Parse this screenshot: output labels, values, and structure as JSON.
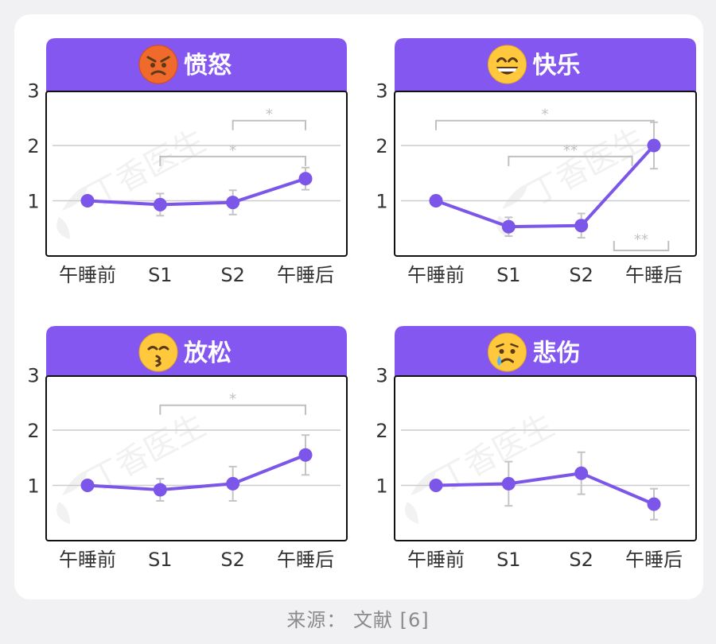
{
  "source": "来源： 文献 [6]",
  "watermark": "丁香医生",
  "colors": {
    "accent": "#7b56e8",
    "header": "#8457f1",
    "errorbar": "#c4c4c4",
    "significance": "#c0c0c0",
    "grid": "#cccccc"
  },
  "chart_data": [
    {
      "type": "line",
      "title": "愤怒",
      "icon": "angry-face-emoji",
      "categories": [
        "午睡前",
        "S1",
        "S2",
        "午睡后"
      ],
      "values": [
        1.0,
        0.93,
        0.97,
        1.4
      ],
      "errors": [
        0,
        0.2,
        0.22,
        0.2
      ],
      "ylim": [
        0,
        3
      ],
      "yticks": [
        1,
        2,
        3
      ],
      "grid": true,
      "significance": [
        {
          "from": 1,
          "to": 3,
          "label": "*",
          "level": 1.8
        },
        {
          "from": 2,
          "to": 3,
          "label": "*",
          "level": 2.45
        }
      ]
    },
    {
      "type": "line",
      "title": "快乐",
      "icon": "grinning-face-emoji",
      "categories": [
        "午睡前",
        "S1",
        "S2",
        "午睡后"
      ],
      "values": [
        1.0,
        0.53,
        0.55,
        2.0
      ],
      "errors": [
        0,
        0.17,
        0.22,
        0.42
      ],
      "ylim": [
        0,
        3
      ],
      "yticks": [
        1,
        2,
        3
      ],
      "grid": true,
      "significance": [
        {
          "from": 0,
          "to": 3,
          "label": "*",
          "level": 2.45
        },
        {
          "from": 1,
          "to": 2.7,
          "label": "**",
          "level": 1.8
        },
        {
          "from": 2.45,
          "to": 3.2,
          "label": "**",
          "level": 0.1,
          "below": true
        }
      ]
    },
    {
      "type": "line",
      "title": "放松",
      "icon": "kissing-face-emoji",
      "categories": [
        "午睡前",
        "S1",
        "S2",
        "午睡后"
      ],
      "values": [
        1.0,
        0.92,
        1.03,
        1.55
      ],
      "errors": [
        0,
        0.2,
        0.31,
        0.36
      ],
      "ylim": [
        0,
        3
      ],
      "yticks": [
        1,
        2,
        3
      ],
      "grid": true,
      "significance": [
        {
          "from": 1,
          "to": 3,
          "label": "*",
          "level": 2.45
        }
      ]
    },
    {
      "type": "line",
      "title": "悲伤",
      "icon": "crying-face-emoji",
      "categories": [
        "午睡前",
        "S1",
        "S2",
        "午睡后"
      ],
      "values": [
        1.0,
        1.03,
        1.22,
        0.66
      ],
      "errors": [
        0,
        0.4,
        0.38,
        0.28
      ],
      "ylim": [
        0,
        3
      ],
      "yticks": [
        1,
        2,
        3
      ],
      "grid": true,
      "significance": []
    }
  ]
}
